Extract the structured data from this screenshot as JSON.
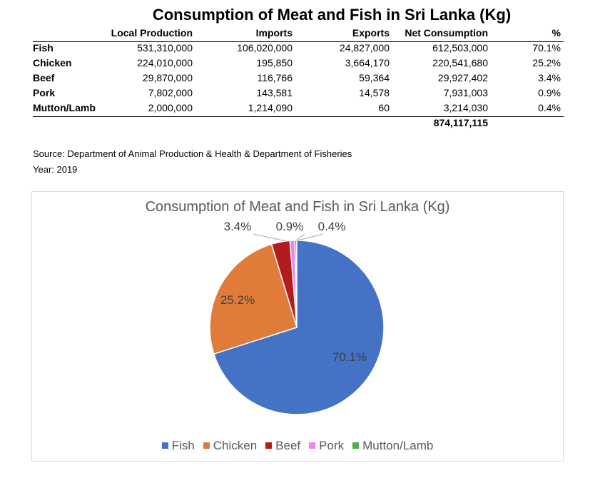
{
  "table": {
    "title": "Consumption of Meat and Fish in Sri Lanka (Kg)",
    "headers": [
      "Local Production",
      "Imports",
      "Exports",
      "Net Consumption",
      "%"
    ],
    "rows": [
      {
        "name": "Fish",
        "local": "531,310,000",
        "imports": "106,020,000",
        "exports": "24,827,000",
        "net": "612,503,000",
        "pct": "70.1%"
      },
      {
        "name": "Chicken",
        "local": "224,010,000",
        "imports": "195,850",
        "exports": "3,664,170",
        "net": "220,541,680",
        "pct": "25.2%"
      },
      {
        "name": "Beef",
        "local": "29,870,000",
        "imports": "116,766",
        "exports": "59,364",
        "net": "29,927,402",
        "pct": "3.4%"
      },
      {
        "name": "Pork",
        "local": "7,802,000",
        "imports": "143,581",
        "exports": "14,578",
        "net": "7,931,003",
        "pct": "0.9%"
      },
      {
        "name": "Mutton/Lamb",
        "local": "2,000,000",
        "imports": "1,214,090",
        "exports": "60",
        "net": "3,214,030",
        "pct": "0.4%"
      }
    ],
    "total": "874,117,115"
  },
  "source": "Source: Department of Animal Production & Health & Department of Fisheries",
  "year": "Year: 2019",
  "chart_data": {
    "type": "pie",
    "title": "Consumption of Meat and Fish in Sri Lanka (Kg)",
    "categories": [
      "Fish",
      "Chicken",
      "Beef",
      "Pork",
      "Mutton/Lamb"
    ],
    "values": [
      612503000,
      220541680,
      29927402,
      7931003,
      3214030
    ],
    "labels": [
      "70.1%",
      "25.2%",
      "3.4%",
      "0.9%",
      "0.4%"
    ],
    "colors": [
      "#4472c4",
      "#e07b39",
      "#b31c1c",
      "#ee82ee",
      "#4caf50"
    ],
    "legend": "bottom"
  }
}
